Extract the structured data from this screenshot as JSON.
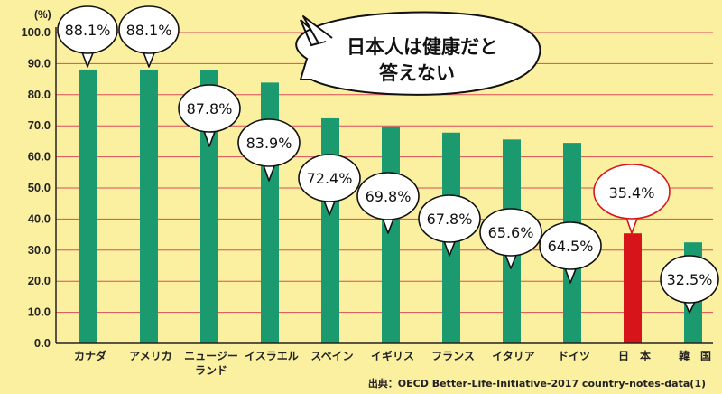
{
  "chart_data": {
    "type": "bar",
    "unit_label": "(%)",
    "categories": [
      "カナダ",
      "アメリカ",
      "ニュージーランド",
      "イスラエル",
      "スペイン",
      "イギリス",
      "フランス",
      "イタリア",
      "ドイツ",
      "日　本",
      "韓　国"
    ],
    "category_lines": [
      [
        "カナダ"
      ],
      [
        "アメリカ"
      ],
      [
        "ニュージー",
        "ランド"
      ],
      [
        "イスラエル"
      ],
      [
        "スペイン"
      ],
      [
        "イギリス"
      ],
      [
        "フランス"
      ],
      [
        "イタリア"
      ],
      [
        "ドイツ"
      ],
      [
        "日　本"
      ],
      [
        "韓　国"
      ]
    ],
    "values": [
      88.1,
      88.1,
      87.8,
      83.9,
      72.4,
      69.8,
      67.8,
      65.6,
      64.5,
      35.4,
      32.5
    ],
    "data_labels": [
      "88.1%",
      "88.1%",
      "87.8%",
      "83.9%",
      "72.4%",
      "69.8%",
      "67.8%",
      "65.6%",
      "64.5%",
      "35.4%",
      "32.5%"
    ],
    "highlight_index": 9,
    "yticks": [
      "0.0",
      "10.0",
      "20.0",
      "30.0",
      "40.0",
      "50.0",
      "60.0",
      "70.0",
      "80.0",
      "90.0",
      "100.0"
    ],
    "ylim": [
      0,
      100
    ],
    "grid": true,
    "colors": {
      "bar": "#1a9a6e",
      "highlight": "#d7141a",
      "background": "#fbf0a0",
      "grid": "#d94b5a"
    }
  },
  "callout": {
    "line1": "日本人は健康だと",
    "line2": "答えない"
  },
  "source": "出典：OECD  Better-Life-Initiative-2017 country-notes-data(1)"
}
